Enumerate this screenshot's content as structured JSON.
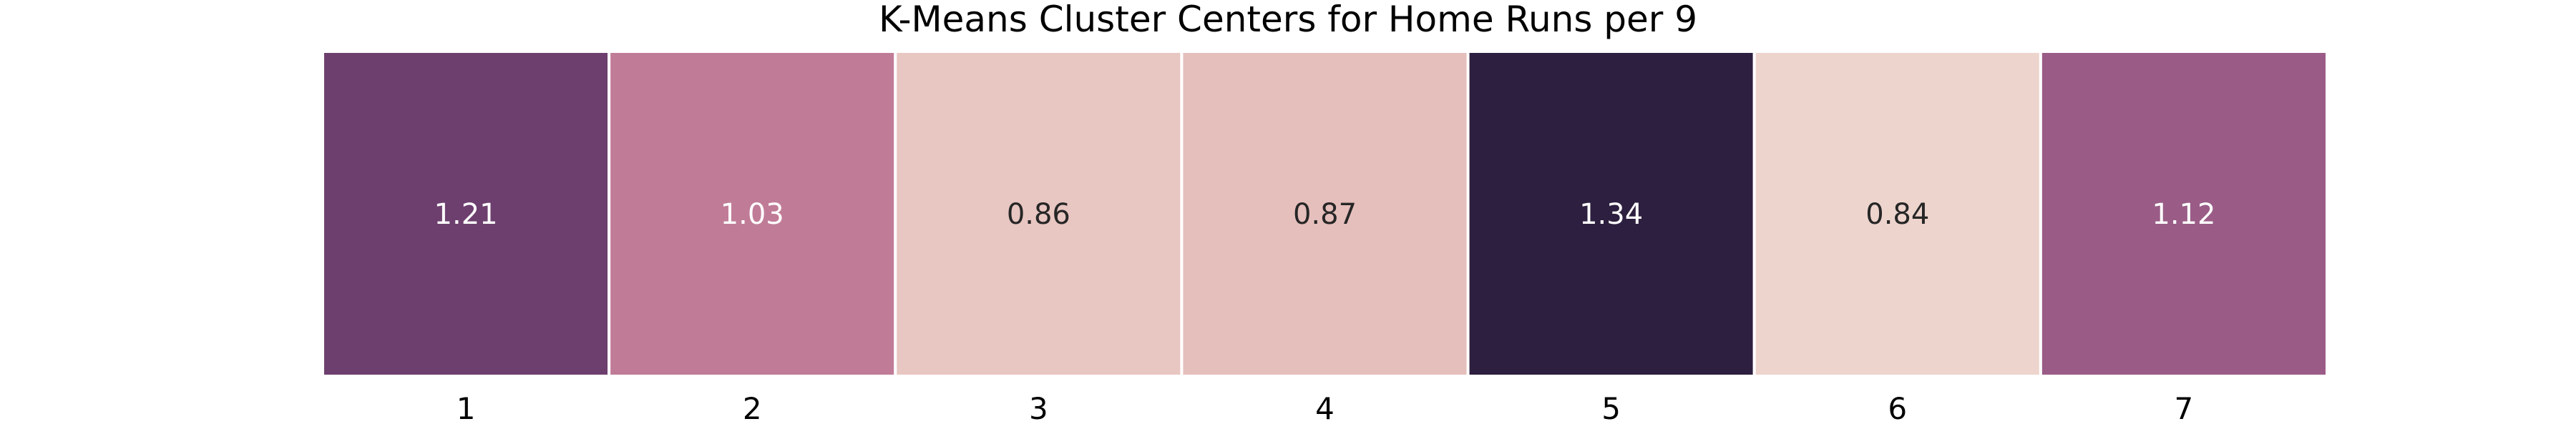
{
  "chart_data": {
    "type": "heatmap",
    "title": "K-Means Cluster Centers for Home Runs per 9",
    "xlabel": "",
    "ylabel": "",
    "categories": [
      "1",
      "2",
      "3",
      "4",
      "5",
      "6",
      "7"
    ],
    "values": [
      1.21,
      1.03,
      0.86,
      0.87,
      1.34,
      0.84,
      1.12
    ],
    "labels": [
      "1.21",
      "1.03",
      "0.86",
      "0.87",
      "1.34",
      "0.84",
      "1.12"
    ],
    "cell_colors": [
      "#6d3f6e",
      "#c07c97",
      "#e8c6c2",
      "#e5bfbc",
      "#2d1f3f",
      "#edd4cd",
      "#9a5c87"
    ],
    "label_colors": [
      "#ffffff",
      "#ffffff",
      "#262626",
      "#262626",
      "#ffffff",
      "#262626",
      "#ffffff"
    ],
    "grid": false,
    "legend": "none",
    "colormap": "cubehelix (light pink to dark purple)"
  }
}
